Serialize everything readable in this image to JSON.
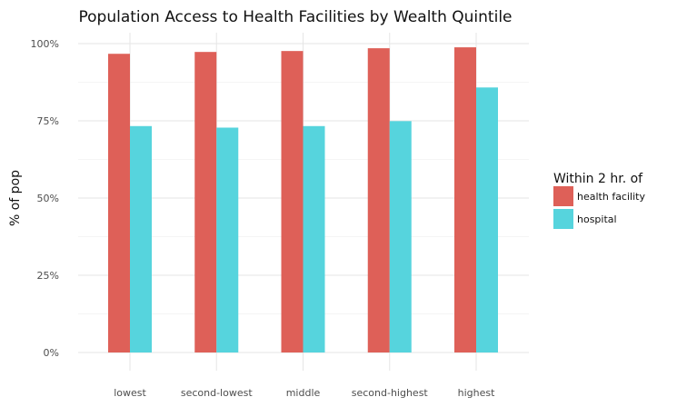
{
  "chart_data": {
    "type": "bar",
    "title": "Population Access to Health Facilities by Wealth Quintile",
    "xlabel": "",
    "ylabel": "% of pop",
    "categories": [
      "lowest",
      "second-lowest",
      "middle",
      "second-highest",
      "highest"
    ],
    "series": [
      {
        "name": "health facility",
        "color": "#de6058",
        "values": [
          96.7,
          97.3,
          97.6,
          98.5,
          98.8
        ]
      },
      {
        "name": "hospital",
        "color": "#56d4dd",
        "values": [
          73.3,
          72.8,
          73.3,
          74.9,
          85.8
        ]
      }
    ],
    "ylim": [
      0,
      100
    ],
    "yticks": [
      0,
      25,
      50,
      75,
      100
    ],
    "ytick_labels": [
      "0%",
      "25%",
      "50%",
      "75%",
      "100%"
    ],
    "legend": {
      "title": "Within 2 hr. of",
      "position": "right"
    },
    "grid": true
  }
}
